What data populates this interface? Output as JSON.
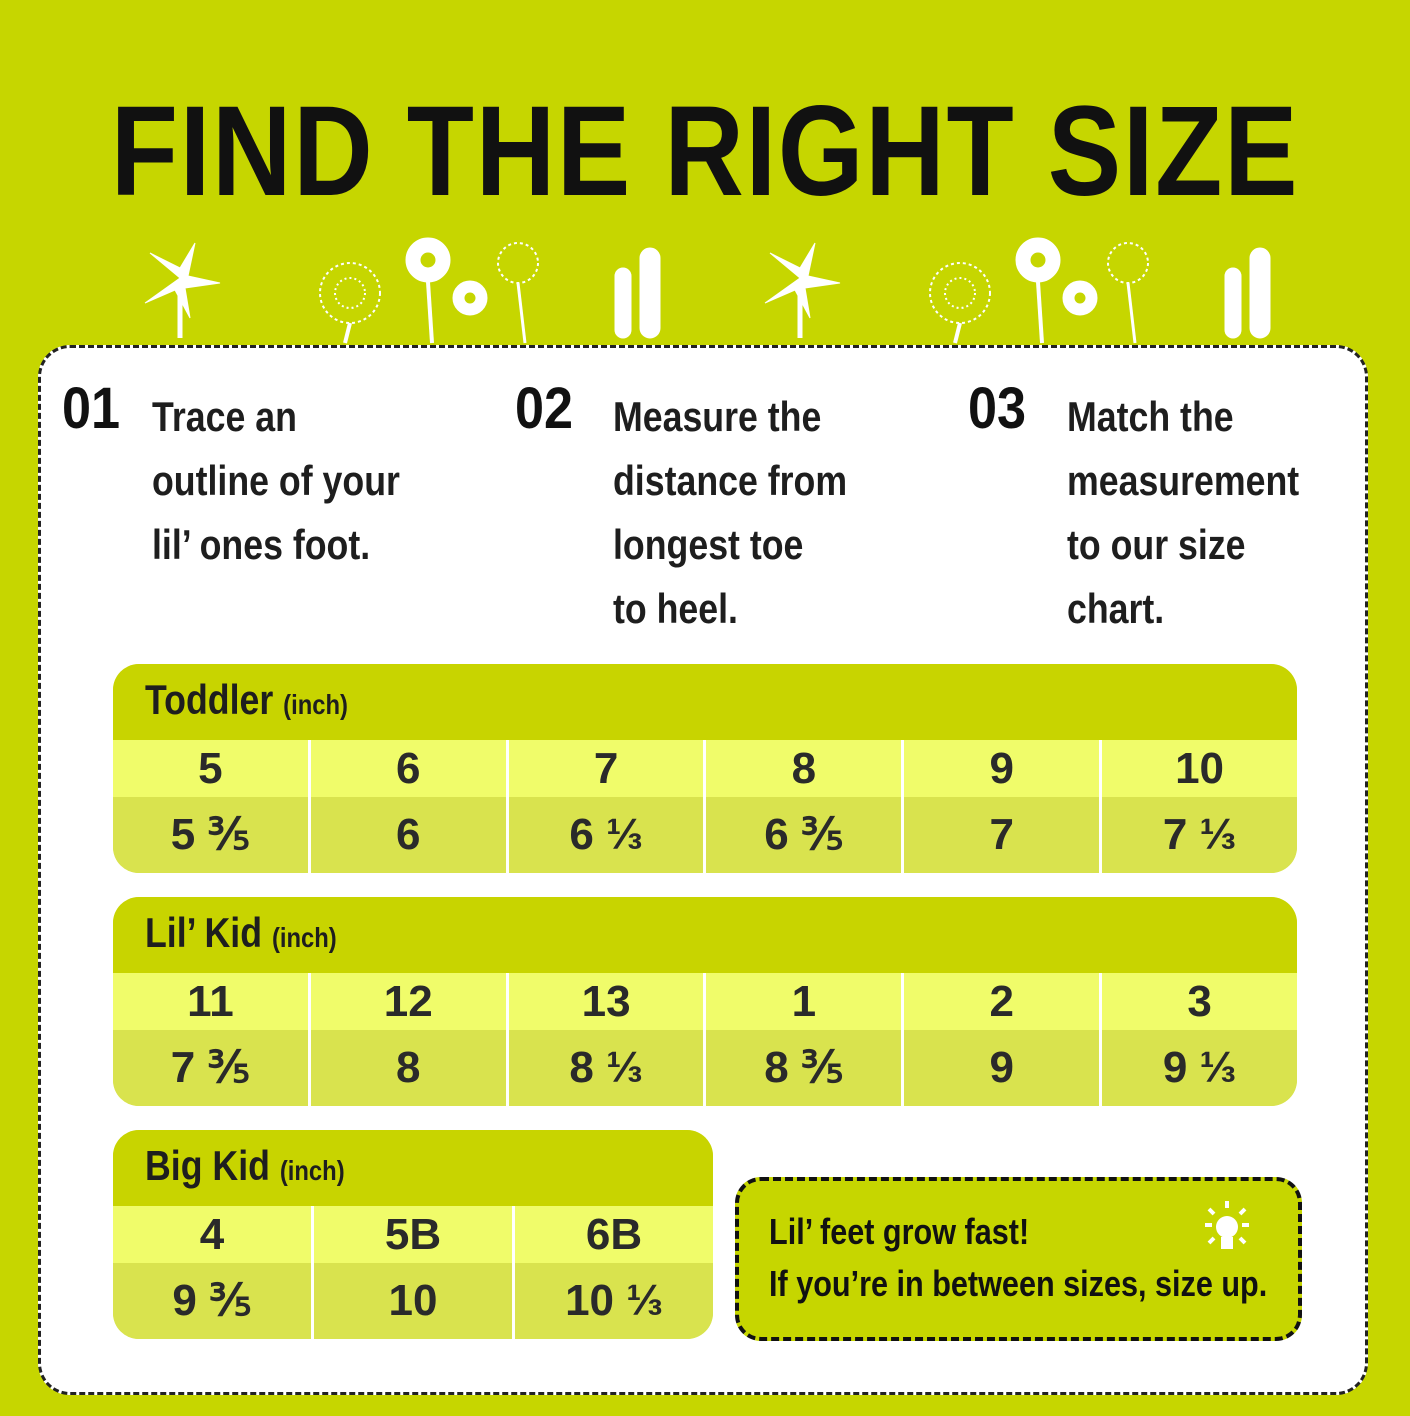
{
  "title": "FIND THE RIGHT SIZE",
  "steps": [
    {
      "num": "01",
      "lines": [
        "Trace an",
        "outline of your",
        "lil’ ones foot."
      ]
    },
    {
      "num": "02",
      "lines": [
        "Measure the",
        "distance from",
        "longest toe",
        "to heel."
      ]
    },
    {
      "num": "03",
      "lines": [
        "Match the",
        "measurement",
        "to our size",
        "chart."
      ]
    }
  ],
  "tables": [
    {
      "name": "Toddler",
      "unit": "(inch)",
      "sizes": [
        "5",
        "6",
        "7",
        "8",
        "9",
        "10"
      ],
      "inches": [
        "5 ⅗",
        "6",
        "6 ⅓",
        "6 ⅗",
        "7",
        "7 ⅓"
      ]
    },
    {
      "name": "Lil’ Kid",
      "unit": "(inch)",
      "sizes": [
        "11",
        "12",
        "13",
        "1",
        "2",
        "3"
      ],
      "inches": [
        "7 ⅗",
        "8",
        "8 ⅓",
        "8 ⅗",
        "9",
        "9 ⅓"
      ]
    },
    {
      "name": "Big Kid",
      "unit": "(inch)",
      "sizes": [
        "4",
        "5B",
        "6B"
      ],
      "inches": [
        "9 ⅗",
        "10",
        "10 ⅓"
      ]
    }
  ],
  "tip": {
    "line1": "Lil’ feet grow fast!",
    "line2": "If you’re in between sizes, size up.",
    "icon": "lightbulb-icon"
  },
  "colors": {
    "background": "#c6d600",
    "header": "#c8d400",
    "size_row": "#f0fc6a",
    "inch_row": "#d9e34e"
  }
}
